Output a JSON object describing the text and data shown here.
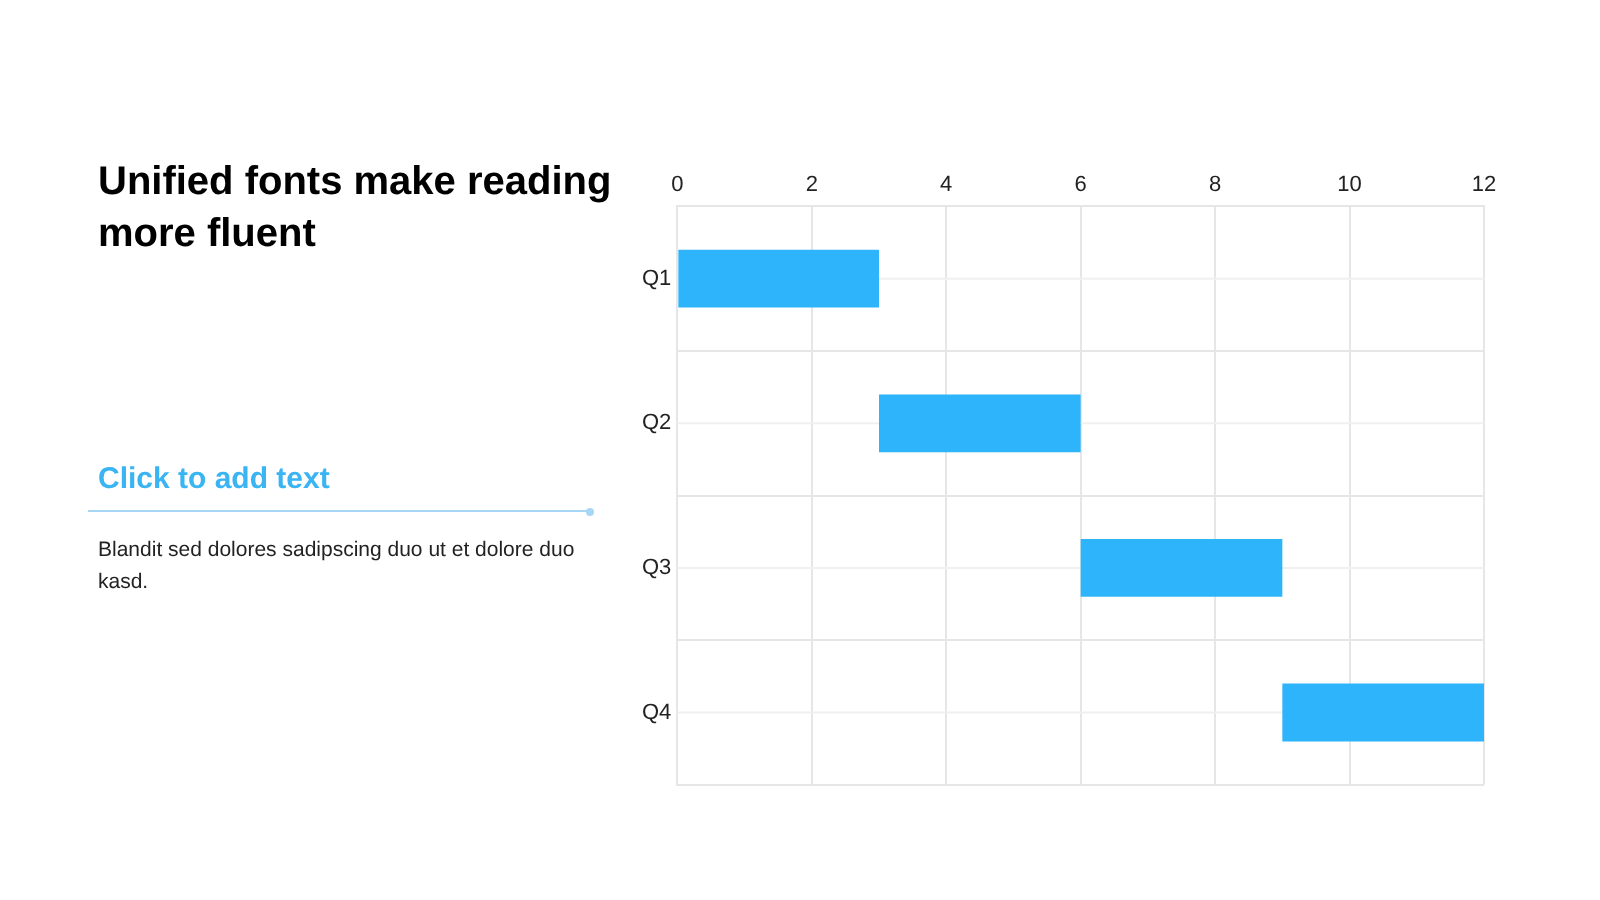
{
  "chart_data": {
    "type": "bar",
    "orientation": "horizontal",
    "title": "Unified fonts make reading more fluent",
    "subtitle": "Click to add text",
    "annotations": [
      "Blandit sed dolores sadipscing duo ut et dolore duo kasd."
    ],
    "categories": [
      "Q1",
      "Q2",
      "Q3",
      "Q4"
    ],
    "values": [
      3,
      3,
      3,
      3
    ],
    "base": [
      0,
      3,
      6,
      9
    ],
    "color": "#2eb4fb",
    "xlim": [
      0,
      12
    ],
    "xticks": [
      0,
      2,
      4,
      6,
      8,
      10,
      12
    ],
    "grid": true,
    "legend": false
  }
}
